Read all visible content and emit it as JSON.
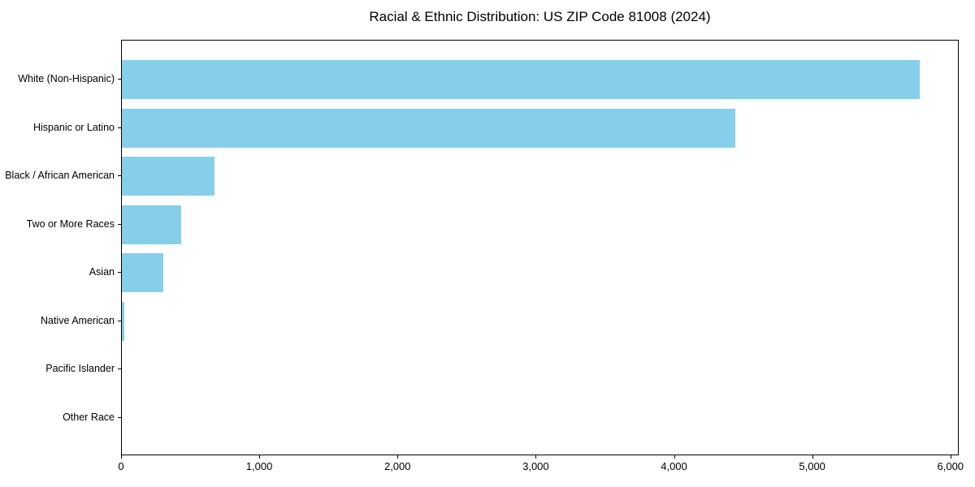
{
  "chart_data": {
    "type": "bar",
    "orientation": "horizontal",
    "title": "Racial & Ethnic Distribution: US ZIP Code 81008 (2024)",
    "categories": [
      "White (Non-Hispanic)",
      "Hispanic or Latino",
      "Black / African American",
      "Two or More Races",
      "Asian",
      "Native American",
      "Pacific Islander",
      "Other Race"
    ],
    "values": [
      5770,
      4440,
      670,
      430,
      300,
      20,
      0,
      0
    ],
    "xlabel": "",
    "ylabel": "",
    "xlim": [
      0,
      6060
    ],
    "xticks": [
      0,
      1000,
      2000,
      3000,
      4000,
      5000,
      6000
    ],
    "xtick_labels": [
      "0",
      "1,000",
      "2,000",
      "3,000",
      "4,000",
      "5,000",
      "6,000"
    ],
    "bar_color": "#87CEEB",
    "background_color": "#ffffff",
    "axis_color": "#000000",
    "grid": false,
    "legend": null
  }
}
